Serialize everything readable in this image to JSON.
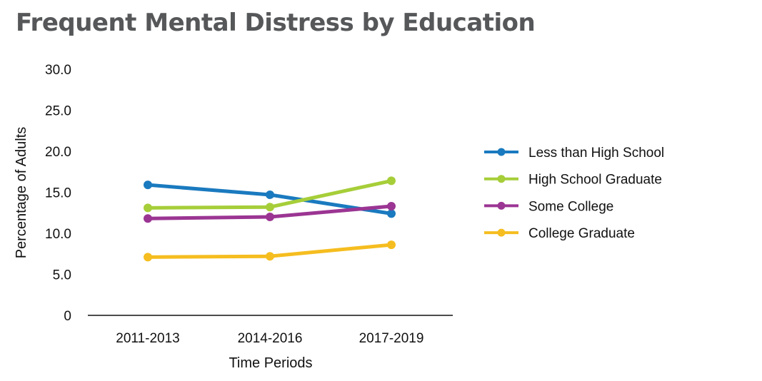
{
  "chart_data": {
    "type": "line",
    "title": "Frequent Mental Distress by Education",
    "xlabel": "Time Periods",
    "ylabel": "Percentage of Adults",
    "categories": [
      "2011-2013",
      "2014-2016",
      "2017-2019"
    ],
    "ylim": [
      0,
      30
    ],
    "yticks": [
      "0",
      "5.0",
      "10.0",
      "15.0",
      "20.0",
      "25.0",
      "30.0"
    ],
    "grid": false,
    "legend_position": "right",
    "series": [
      {
        "name": "Less than High School",
        "color": "#1a7abf",
        "values": [
          15.9,
          14.7,
          12.4
        ]
      },
      {
        "name": "High School Graduate",
        "color": "#a6ce39",
        "values": [
          13.1,
          13.2,
          16.4
        ]
      },
      {
        "name": "Some College",
        "color": "#9b3593",
        "values": [
          11.8,
          12.0,
          13.3
        ]
      },
      {
        "name": "College Graduate",
        "color": "#f5bd1f",
        "values": [
          7.1,
          7.2,
          8.6
        ]
      }
    ]
  }
}
